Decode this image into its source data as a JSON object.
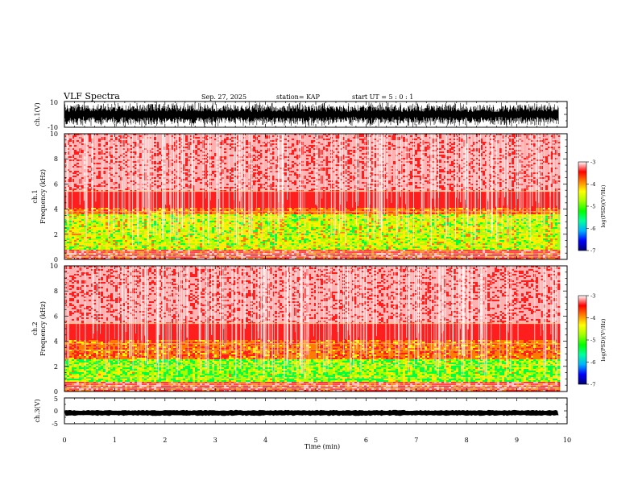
{
  "header": {
    "title": "VLF Spectra",
    "date": "Sep. 27, 2025",
    "station": "station= KAP",
    "start": "start  UT =   5 : 0  : 1"
  },
  "chart_data": [
    {
      "type": "line",
      "name": "channel 1 waveform",
      "ylabel": "ch.1(V)",
      "ylim": [
        -10,
        10
      ],
      "ytick_labels": [
        "10",
        "-10"
      ],
      "x_range_min": [
        0,
        9.83
      ]
    },
    {
      "type": "heatmap",
      "name": "channel 1 spectrogram",
      "ylabel_line1": "ch.1",
      "ylabel_line2": "Frequency  (kHz)",
      "ylim": [
        0,
        10
      ],
      "yticks": [
        0,
        2,
        4,
        6,
        8,
        10
      ],
      "ytick_labels": [
        "0",
        "2",
        "4",
        "6",
        "8",
        "10"
      ],
      "x_range_min": [
        0,
        9.83
      ]
    },
    {
      "type": "heatmap",
      "name": "channel 2 spectrogram",
      "ylabel_line1": "ch.2",
      "ylabel_line2": "Frequency  (kHz)",
      "ylim": [
        0,
        10
      ],
      "yticks": [
        0,
        2,
        4,
        6,
        8,
        10
      ],
      "ytick_labels": [
        "0",
        "2",
        "4",
        "6",
        "8",
        "10"
      ],
      "x_range_min": [
        0,
        9.83
      ]
    },
    {
      "type": "line",
      "name": "channel 3 waveform",
      "ylabel": "ch.3(V)",
      "ylim": [
        -5,
        5
      ],
      "ytick_labels": [
        "5",
        "0",
        "-5"
      ],
      "trace_level": -0.8,
      "x_range_min": [
        0,
        9.83
      ]
    }
  ],
  "xaxis": {
    "label": "Time  (min)",
    "xlim": [
      0,
      10
    ],
    "ticks": [
      0,
      1,
      2,
      3,
      4,
      5,
      6,
      7,
      8,
      9,
      10
    ],
    "tick_labels": [
      "0",
      "1",
      "2",
      "3",
      "4",
      "5",
      "6",
      "7",
      "8",
      "9",
      "10"
    ]
  },
  "colorbar": {
    "label": "log(PSD)(V²/Hz)",
    "range": [
      -7,
      -3
    ],
    "ticks": [
      -3,
      -4,
      -5,
      -6,
      -7
    ],
    "tick_labels": [
      "-3",
      "-4",
      "-5",
      "-6",
      "-7"
    ],
    "colors": [
      "#000070",
      "#0000ff",
      "#00b0ff",
      "#00ffa0",
      "#00ff00",
      "#a0ff00",
      "#ffff00",
      "#ff8000",
      "#ff0000",
      "#ffffff"
    ]
  }
}
